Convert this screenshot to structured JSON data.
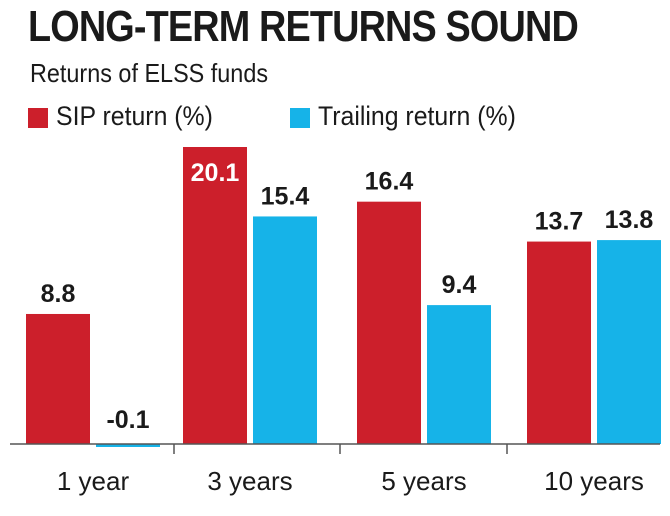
{
  "title": "LONG-TERM RETURNS SOUND",
  "subtitle": "Returns of ELSS funds",
  "colors": {
    "sip": "#cc1f2b",
    "trailing": "#16b3e8",
    "axis": "#555555",
    "text": "#1a1a1a",
    "label_on_bar": "#ffffff"
  },
  "chart_data": {
    "type": "bar",
    "title": "LONG-TERM RETURNS SOUND",
    "subtitle": "Returns of ELSS funds",
    "xlabel": "",
    "ylabel": "",
    "categories": [
      "1 year",
      "3 years",
      "5 years",
      "10 years"
    ],
    "series": [
      {
        "name": "SIP return (%)",
        "values": [
          8.8,
          20.1,
          16.4,
          13.7
        ]
      },
      {
        "name": "Trailing return (%)",
        "values": [
          -0.1,
          15.4,
          9.4,
          13.8
        ]
      }
    ],
    "ylim": [
      0,
      20.1
    ],
    "grid": false,
    "legend": "top-left"
  }
}
